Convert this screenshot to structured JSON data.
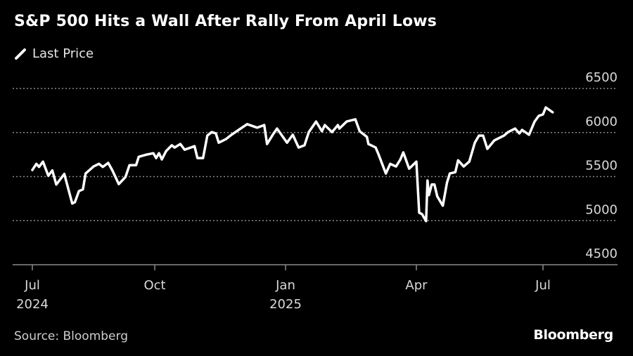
{
  "title": "S&P 500 Hits a Wall After Rally From April Lows",
  "source": "Source: Bloomberg",
  "logo": "Bloomberg",
  "colors": {
    "background": "#000000",
    "line": "#ffffff",
    "grid": "#8a8a8a",
    "text": "#d9d9d9"
  },
  "chart_data": {
    "type": "line",
    "title": "S&P 500 Hits a Wall After Rally From April Lows",
    "xlabel": "",
    "ylabel": "",
    "ylim": [
      4500,
      6500
    ],
    "yticks": [
      "6500",
      "6000",
      "5500",
      "5000",
      "4500"
    ],
    "ytick_values": [
      6500,
      6000,
      5500,
      5000,
      4500
    ],
    "xticks": [
      {
        "date": "2024-07-01",
        "label": "Jul",
        "sublabel": "2024"
      },
      {
        "date": "2024-10-01",
        "label": "Oct",
        "sublabel": ""
      },
      {
        "date": "2025-01-01",
        "label": "Jan",
        "sublabel": "2025"
      },
      {
        "date": "2025-04-01",
        "label": "Apr",
        "sublabel": ""
      },
      {
        "date": "2025-07-01",
        "label": "Jul",
        "sublabel": ""
      }
    ],
    "grid": true,
    "legend": {
      "placement": "top-left",
      "entries": [
        "Last Price"
      ]
    },
    "series": [
      {
        "name": "Last Price",
        "points": [
          [
            "2024-07-01",
            5575
          ],
          [
            "2024-07-04",
            5645
          ],
          [
            "2024-07-06",
            5610
          ],
          [
            "2024-07-09",
            5670
          ],
          [
            "2024-07-13",
            5510
          ],
          [
            "2024-07-16",
            5570
          ],
          [
            "2024-07-19",
            5410
          ],
          [
            "2024-07-22",
            5470
          ],
          [
            "2024-07-25",
            5530
          ],
          [
            "2024-07-31",
            5195
          ],
          [
            "2024-08-02",
            5210
          ],
          [
            "2024-08-05",
            5335
          ],
          [
            "2024-08-08",
            5355
          ],
          [
            "2024-08-10",
            5535
          ],
          [
            "2024-08-16",
            5615
          ],
          [
            "2024-08-20",
            5645
          ],
          [
            "2024-08-23",
            5610
          ],
          [
            "2024-08-27",
            5655
          ],
          [
            "2024-08-30",
            5575
          ],
          [
            "2024-09-04",
            5415
          ],
          [
            "2024-09-09",
            5495
          ],
          [
            "2024-09-12",
            5630
          ],
          [
            "2024-09-17",
            5630
          ],
          [
            "2024-09-19",
            5725
          ],
          [
            "2024-09-25",
            5750
          ],
          [
            "2024-09-30",
            5765
          ],
          [
            "2024-10-02",
            5710
          ],
          [
            "2024-10-04",
            5765
          ],
          [
            "2024-10-06",
            5695
          ],
          [
            "2024-10-09",
            5790
          ],
          [
            "2024-10-13",
            5855
          ],
          [
            "2024-10-15",
            5830
          ],
          [
            "2024-10-19",
            5870
          ],
          [
            "2024-10-22",
            5805
          ],
          [
            "2024-10-29",
            5845
          ],
          [
            "2024-10-31",
            5710
          ],
          [
            "2024-11-04",
            5710
          ],
          [
            "2024-11-07",
            5965
          ],
          [
            "2024-11-10",
            6005
          ],
          [
            "2024-11-13",
            5990
          ],
          [
            "2024-11-15",
            5885
          ],
          [
            "2024-11-20",
            5925
          ],
          [
            "2024-11-24",
            5975
          ],
          [
            "2024-11-29",
            6030
          ],
          [
            "2024-12-05",
            6095
          ],
          [
            "2024-12-12",
            6055
          ],
          [
            "2024-12-17",
            6085
          ],
          [
            "2024-12-19",
            5870
          ],
          [
            "2024-12-23",
            5975
          ],
          [
            "2024-12-26",
            6045
          ],
          [
            "2025-01-02",
            5885
          ],
          [
            "2025-01-06",
            5975
          ],
          [
            "2025-01-10",
            5830
          ],
          [
            "2025-01-14",
            5855
          ],
          [
            "2025-01-17",
            6005
          ],
          [
            "2025-01-22",
            6125
          ],
          [
            "2025-01-26",
            6015
          ],
          [
            "2025-01-28",
            6085
          ],
          [
            "2025-02-02",
            6005
          ],
          [
            "2025-02-06",
            6085
          ],
          [
            "2025-02-07",
            6045
          ],
          [
            "2025-02-12",
            6125
          ],
          [
            "2025-02-18",
            6150
          ],
          [
            "2025-02-21",
            6015
          ],
          [
            "2025-02-26",
            5950
          ],
          [
            "2025-02-27",
            5870
          ],
          [
            "2025-03-04",
            5830
          ],
          [
            "2025-03-06",
            5750
          ],
          [
            "2025-03-11",
            5535
          ],
          [
            "2025-03-14",
            5645
          ],
          [
            "2025-03-18",
            5615
          ],
          [
            "2025-03-21",
            5695
          ],
          [
            "2025-03-23",
            5775
          ],
          [
            "2025-03-27",
            5590
          ],
          [
            "2025-04-01",
            5670
          ],
          [
            "2025-04-03",
            5090
          ],
          [
            "2025-04-05",
            5075
          ],
          [
            "2025-04-08",
            4995
          ],
          [
            "2025-04-09",
            5455
          ],
          [
            "2025-04-10",
            5290
          ],
          [
            "2025-04-12",
            5410
          ],
          [
            "2025-04-14",
            5410
          ],
          [
            "2025-04-16",
            5275
          ],
          [
            "2025-04-20",
            5170
          ],
          [
            "2025-04-23",
            5430
          ],
          [
            "2025-04-25",
            5535
          ],
          [
            "2025-04-29",
            5550
          ],
          [
            "2025-05-01",
            5685
          ],
          [
            "2025-05-05",
            5615
          ],
          [
            "2025-05-09",
            5670
          ],
          [
            "2025-05-13",
            5885
          ],
          [
            "2025-05-16",
            5965
          ],
          [
            "2025-05-19",
            5965
          ],
          [
            "2025-05-22",
            5815
          ],
          [
            "2025-05-27",
            5910
          ],
          [
            "2025-06-03",
            5965
          ],
          [
            "2025-06-06",
            6005
          ],
          [
            "2025-06-11",
            6045
          ],
          [
            "2025-06-14",
            5990
          ],
          [
            "2025-06-16",
            6030
          ],
          [
            "2025-06-21",
            5975
          ],
          [
            "2025-06-25",
            6125
          ],
          [
            "2025-06-28",
            6190
          ],
          [
            "2025-07-01",
            6205
          ],
          [
            "2025-07-03",
            6285
          ],
          [
            "2025-07-08",
            6230
          ]
        ]
      }
    ]
  }
}
